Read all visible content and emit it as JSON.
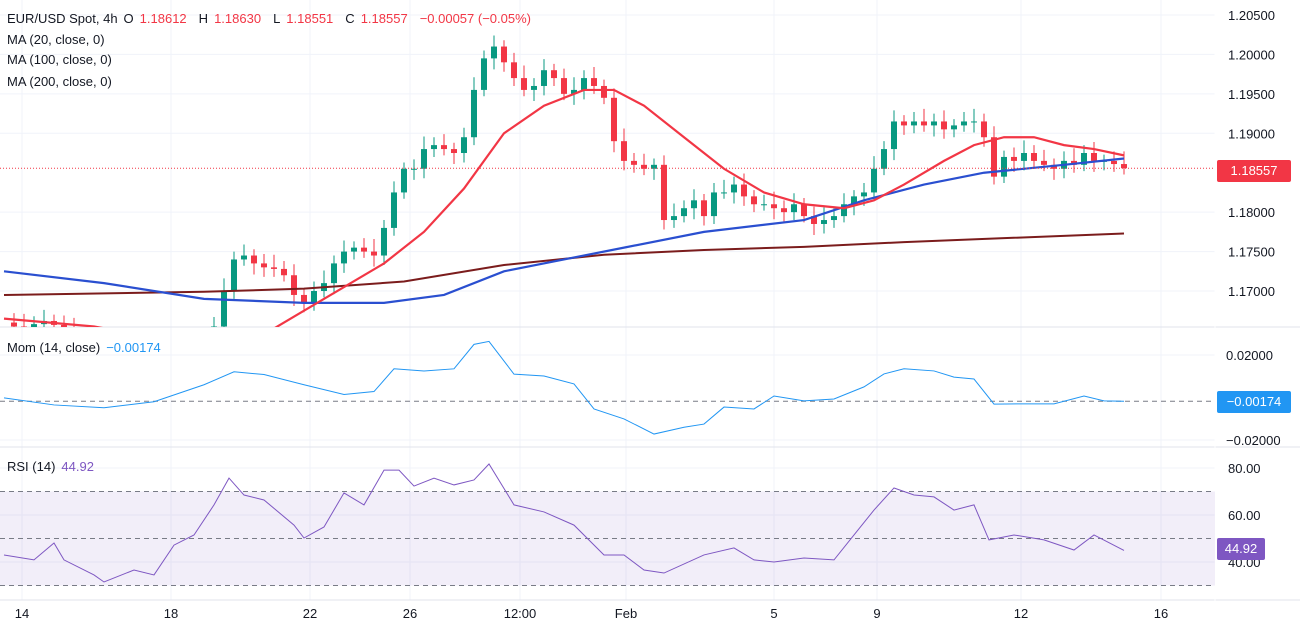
{
  "header": {
    "symbol": "EUR/USD Spot, 4h",
    "o_label": "O",
    "open": "1.18612",
    "h_label": "H",
    "high": "1.18630",
    "l_label": "L",
    "low": "1.18551",
    "c_label": "C",
    "close": "1.18557",
    "change": "−0.00057 (−0.05%)"
  },
  "indicators": {
    "ma20": "MA (20, close, 0)",
    "ma100": "MA (100, close, 0)",
    "ma200": "MA (200, close, 0)",
    "mom_title": "Mom (14, close)",
    "mom_value": "−0.00174",
    "rsi_title": "RSI (14)",
    "rsi_value": "44.92"
  },
  "colors": {
    "up": "#089981",
    "down": "#f23645",
    "ma20": "#f23645",
    "ma100": "#2a4fd0",
    "ma200": "#7b1c1c",
    "mom": "#2196f3",
    "rsi": "#7e57c2"
  },
  "chart_data": [
    {
      "type": "candlestick",
      "title": "EUR/USD Spot, 4h",
      "last_price": "1.18557",
      "y_ticks": [
        "1.20500",
        "1.20000",
        "1.19500",
        "1.19000",
        "1.18000",
        "1.17500",
        "1.17000"
      ],
      "ylim": [
        1.1654,
        1.2065
      ],
      "x_ticks": [
        {
          "label": "14",
          "at": 1.8
        },
        {
          "label": "18",
          "at": 16.7
        },
        {
          "label": "22",
          "at": 30.6
        },
        {
          "label": "26",
          "at": 40.6
        },
        {
          "label": "12:00",
          "at": 51.6
        },
        {
          "label": "Feb",
          "at": 62.2
        },
        {
          "label": "5",
          "at": 77
        },
        {
          "label": "9",
          "at": 87.3
        },
        {
          "label": "12",
          "at": 101.7
        },
        {
          "label": "16",
          "at": 115.7
        }
      ],
      "closes": [
        1.166,
        1.1655,
        1.165,
        1.1658,
        1.1662,
        1.1657,
        1.165,
        1.164,
        1.163,
        1.162,
        1.161,
        1.1615,
        1.16,
        1.1605,
        1.161,
        1.1612,
        1.1605,
        1.161,
        1.162,
        1.1625,
        1.163,
        1.1655,
        1.17,
        1.174,
        1.1745,
        1.1735,
        1.173,
        1.1728,
        1.172,
        1.1695,
        1.1685,
        1.17,
        1.171,
        1.1735,
        1.175,
        1.1755,
        1.175,
        1.1745,
        1.178,
        1.1825,
        1.1855,
        1.1855,
        1.188,
        1.1885,
        1.188,
        1.1875,
        1.1895,
        1.1955,
        1.1995,
        1.201,
        1.199,
        1.197,
        1.1955,
        1.196,
        1.198,
        1.197,
        1.195,
        1.1955,
        1.197,
        1.196,
        1.1945,
        1.189,
        1.1865,
        1.186,
        1.1855,
        1.186,
        1.179,
        1.1795,
        1.1805,
        1.1815,
        1.1795,
        1.1825,
        1.1825,
        1.1835,
        1.182,
        1.181,
        1.181,
        1.1805,
        1.18,
        1.181,
        1.1795,
        1.1785,
        1.179,
        1.1795,
        1.181,
        1.182,
        1.1825,
        1.1855,
        1.188,
        1.1915,
        1.191,
        1.1915,
        1.191,
        1.1915,
        1.1905,
        1.191,
        1.1915,
        1.1915,
        1.1895,
        1.1845,
        1.187,
        1.1865,
        1.1875,
        1.1865,
        1.186,
        1.1855,
        1.1865,
        1.186,
        1.1875,
        1.1865,
        1.1865,
        1.1861,
        1.18557
      ],
      "ma20": [
        [
          0,
          1.1665
        ],
        [
          9,
          1.1655
        ],
        [
          20,
          1.163
        ],
        [
          26,
          1.1645
        ],
        [
          30,
          1.1675
        ],
        [
          34,
          1.1705
        ],
        [
          38,
          1.1735
        ],
        [
          42,
          1.1775
        ],
        [
          46,
          1.183
        ],
        [
          50,
          1.19
        ],
        [
          54,
          1.1935
        ],
        [
          58,
          1.1955
        ],
        [
          61,
          1.1955
        ],
        [
          64,
          1.1935
        ],
        [
          68,
          1.1895
        ],
        [
          72,
          1.1855
        ],
        [
          76,
          1.1825
        ],
        [
          80,
          1.181
        ],
        [
          84,
          1.1805
        ],
        [
          87,
          1.1815
        ],
        [
          90,
          1.1835
        ],
        [
          94,
          1.1865
        ],
        [
          97,
          1.1885
        ],
        [
          100,
          1.1895
        ],
        [
          103,
          1.1895
        ],
        [
          106,
          1.1885
        ],
        [
          109,
          1.188
        ],
        [
          112,
          1.1872
        ]
      ],
      "ma100": [
        [
          0,
          1.1725
        ],
        [
          10,
          1.171
        ],
        [
          20,
          1.169
        ],
        [
          30,
          1.1685
        ],
        [
          38,
          1.1685
        ],
        [
          44,
          1.1695
        ],
        [
          50,
          1.1725
        ],
        [
          56,
          1.174
        ],
        [
          62,
          1.1755
        ],
        [
          70,
          1.1775
        ],
        [
          80,
          1.179
        ],
        [
          86,
          1.1815
        ],
        [
          92,
          1.1835
        ],
        [
          98,
          1.185
        ],
        [
          106,
          1.186
        ],
        [
          112,
          1.1868
        ]
      ],
      "ma200": [
        [
          0,
          1.1695
        ],
        [
          20,
          1.1699
        ],
        [
          30,
          1.1703
        ],
        [
          40,
          1.1712
        ],
        [
          50,
          1.1733
        ],
        [
          60,
          1.1746
        ],
        [
          70,
          1.1752
        ],
        [
          80,
          1.1756
        ],
        [
          90,
          1.1762
        ],
        [
          100,
          1.1767
        ],
        [
          112,
          1.1773
        ]
      ]
    },
    {
      "type": "line",
      "title": "Mom (14, close)",
      "y_ticks": [
        "0.02000",
        "−0.02000"
      ],
      "ylim": [
        -0.02,
        0.02
      ],
      "points": [
        [
          0,
          -0.0002
        ],
        [
          5,
          -0.0035
        ],
        [
          10,
          -0.0048
        ],
        [
          15,
          -0.002
        ],
        [
          20,
          0.006
        ],
        [
          23,
          0.0121
        ],
        [
          26,
          0.0108
        ],
        [
          30,
          0.006
        ],
        [
          34,
          0.0014
        ],
        [
          37,
          0.0028
        ],
        [
          39,
          0.0135
        ],
        [
          42,
          0.0125
        ],
        [
          45,
          0.0135
        ],
        [
          47,
          0.025
        ],
        [
          48.5,
          0.0264
        ],
        [
          51,
          0.011
        ],
        [
          54,
          0.0101
        ],
        [
          57,
          0.0064
        ],
        [
          59,
          -0.0054
        ],
        [
          62,
          -0.0101
        ],
        [
          65,
          -0.0172
        ],
        [
          68,
          -0.014
        ],
        [
          70,
          -0.0125
        ],
        [
          72,
          -0.0045
        ],
        [
          75,
          -0.0054
        ],
        [
          77,
          0.0007
        ],
        [
          80,
          -0.0016
        ],
        [
          83,
          -0.0007
        ],
        [
          86,
          0.005
        ],
        [
          88,
          0.0111
        ],
        [
          90,
          0.0135
        ],
        [
          93,
          0.0125
        ],
        [
          95,
          0.0096
        ],
        [
          97,
          0.0087
        ],
        [
          99,
          -0.0031
        ],
        [
          102,
          -0.003
        ],
        [
          105,
          -0.003
        ],
        [
          108,
          0.0007
        ],
        [
          110,
          -0.0016
        ],
        [
          112,
          -0.00174
        ]
      ]
    },
    {
      "type": "line",
      "title": "RSI (14)",
      "y_ticks": [
        "80.00",
        "60.00",
        "40.00"
      ],
      "bands": [
        30,
        50,
        70
      ],
      "ylim": [
        23,
        85
      ],
      "points": [
        [
          0,
          43
        ],
        [
          3,
          40.9
        ],
        [
          5,
          48.1
        ],
        [
          6,
          40.9
        ],
        [
          9,
          34.5
        ],
        [
          10,
          31.5
        ],
        [
          13,
          36.6
        ],
        [
          15,
          34.5
        ],
        [
          17,
          47.2
        ],
        [
          19,
          51.5
        ],
        [
          21,
          64.3
        ],
        [
          22.5,
          75.7
        ],
        [
          24,
          68.5
        ],
        [
          26,
          66.4
        ],
        [
          29,
          55.7
        ],
        [
          30,
          50.2
        ],
        [
          32,
          54.9
        ],
        [
          34,
          69.4
        ],
        [
          36,
          64.3
        ],
        [
          38,
          79.1
        ],
        [
          39.5,
          79.1
        ],
        [
          41,
          72.3
        ],
        [
          43,
          75.7
        ],
        [
          45,
          72.8
        ],
        [
          47,
          74.9
        ],
        [
          48.5,
          81.7
        ],
        [
          51,
          64.3
        ],
        [
          54,
          61.3
        ],
        [
          57,
          55.7
        ],
        [
          60,
          43
        ],
        [
          62,
          43
        ],
        [
          64,
          36.6
        ],
        [
          66,
          35.3
        ],
        [
          70,
          43
        ],
        [
          73,
          46
        ],
        [
          75,
          40.9
        ],
        [
          77,
          40
        ],
        [
          80,
          41.7
        ],
        [
          83,
          40.9
        ],
        [
          85,
          51.5
        ],
        [
          87,
          62.1
        ],
        [
          89,
          71.5
        ],
        [
          91,
          68.5
        ],
        [
          93,
          67.7
        ],
        [
          95,
          62.1
        ],
        [
          97,
          64.3
        ],
        [
          98.5,
          49.4
        ],
        [
          101,
          51.5
        ],
        [
          104,
          49.4
        ],
        [
          107,
          45.1
        ],
        [
          109,
          51.5
        ],
        [
          112,
          44.92
        ]
      ]
    }
  ]
}
